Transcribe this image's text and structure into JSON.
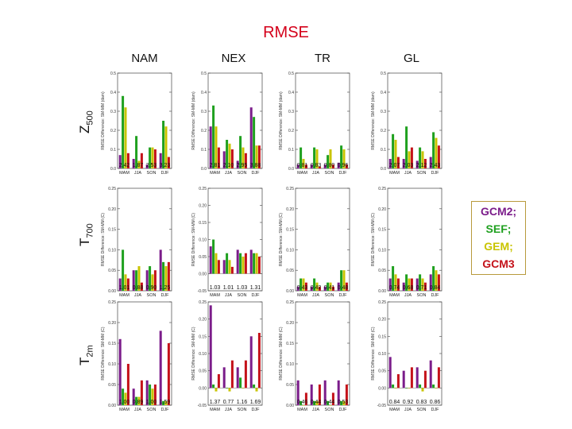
{
  "title": "RMSE",
  "columns": [
    "NAM",
    "NEX",
    "TR",
    "GL"
  ],
  "rows": [
    {
      "var": "Z",
      "sub": "500"
    },
    {
      "var": "T",
      "sub": "700"
    },
    {
      "var": "T",
      "sub": "2m"
    }
  ],
  "legend": [
    {
      "label": "GCM2;",
      "color": "#7b1c8a"
    },
    {
      "label": "SEF;",
      "color": "#1fa01f"
    },
    {
      "label": "GEM;",
      "color": "#c9c400"
    },
    {
      "label": "GCM3",
      "color": "#c4121a"
    }
  ],
  "chart_data": [
    {
      "id": "z500-nam",
      "type": "bar",
      "ylabel": "RMSE Difference: SM-MM (dam)",
      "ylim": [
        0,
        0.5
      ],
      "yticks": [
        "0.0",
        "0.1",
        "0.2",
        "0.3",
        "0.4",
        "0.5"
      ],
      "categories": [
        "MAM",
        "JJA",
        "SON",
        "DJF"
      ],
      "annotations": [
        "2.42",
        "1.87",
        "2.53",
        "3.23"
      ],
      "series": [
        {
          "name": "GCM2",
          "values": [
            0.07,
            0.05,
            0.02,
            0.08
          ]
        },
        {
          "name": "SEF",
          "values": [
            0.38,
            0.17,
            0.11,
            0.25
          ]
        },
        {
          "name": "GEM",
          "values": [
            0.32,
            0.04,
            0.11,
            0.22
          ]
        },
        {
          "name": "GCM3",
          "values": [
            0.08,
            0.08,
            0.1,
            0.06
          ]
        }
      ]
    },
    {
      "id": "z500-nex",
      "type": "bar",
      "ylabel": "RMSE Difference: SM-MM (dam)",
      "ylim": [
        0,
        0.5
      ],
      "yticks": [
        "0.0",
        "0.1",
        "0.2",
        "0.3",
        "0.4",
        "0.5"
      ],
      "categories": [
        "MAM",
        "JJA",
        "SON",
        "DJF"
      ],
      "annotations": [
        "2.81",
        "2.10",
        "2.95",
        "3.88"
      ],
      "series": [
        {
          "name": "GCM2",
          "values": [
            0.22,
            0.09,
            0.04,
            0.32
          ]
        },
        {
          "name": "SEF",
          "values": [
            0.33,
            0.15,
            0.17,
            0.27
          ]
        },
        {
          "name": "GEM",
          "values": [
            0.22,
            0.13,
            0.11,
            0.12
          ]
        },
        {
          "name": "GCM3",
          "values": [
            0.11,
            0.1,
            0.08,
            0.12
          ]
        }
      ]
    },
    {
      "id": "z500-tr",
      "type": "bar",
      "ylabel": "RMSE Difference: SM-MM (dam)",
      "ylim": [
        0,
        0.5
      ],
      "yticks": [
        "0.0",
        "0.1",
        "0.2",
        "0.3",
        "0.4",
        "0.5"
      ],
      "categories": [
        "MAM",
        "JJA",
        "SON",
        "DJF"
      ],
      "annotations": [
        "0.81",
        "0.83",
        "0.80",
        "0.96"
      ],
      "series": [
        {
          "name": "GCM2",
          "values": [
            0.02,
            0.02,
            0.02,
            0.03
          ]
        },
        {
          "name": "SEF",
          "values": [
            0.11,
            0.11,
            0.07,
            0.12
          ]
        },
        {
          "name": "GEM",
          "values": [
            0.05,
            0.1,
            0.1,
            0.1
          ]
        },
        {
          "name": "GCM3",
          "values": [
            0.02,
            0.01,
            0.02,
            0.02
          ]
        }
      ]
    },
    {
      "id": "z500-gl",
      "type": "bar",
      "ylabel": "RMSE Difference: SM-MM (dam)",
      "ylim": [
        0,
        0.5
      ],
      "yticks": [
        "0.0",
        "0.1",
        "0.2",
        "0.3",
        "0.4",
        "0.5"
      ],
      "categories": [
        "MAM",
        "JJA",
        "SON",
        "DJF"
      ],
      "annotations": [
        "2.07",
        "2.03",
        "2.12",
        "2.43"
      ],
      "series": [
        {
          "name": "GCM2",
          "values": [
            0.05,
            0.05,
            0.04,
            0.06
          ]
        },
        {
          "name": "SEF",
          "values": [
            0.18,
            0.22,
            0.11,
            0.19
          ]
        },
        {
          "name": "GEM",
          "values": [
            0.15,
            0.09,
            0.09,
            0.16
          ]
        },
        {
          "name": "GCM3",
          "values": [
            0.06,
            0.11,
            0.05,
            0.12
          ]
        }
      ]
    },
    {
      "id": "t700-nam",
      "type": "bar",
      "ylabel": "RMSE Difference: SM-MM (C)",
      "ylim": [
        0,
        0.25
      ],
      "yticks": [
        "0.00",
        "0.05",
        "0.10",
        "0.15",
        "0.20",
        "0.25"
      ],
      "categories": [
        "MAM",
        "JJA",
        "SON",
        "DJF"
      ],
      "annotations": [
        "1.01",
        "0.88",
        "0.90",
        "1.25"
      ],
      "series": [
        {
          "name": "GCM2",
          "values": [
            0.03,
            0.05,
            0.05,
            0.1
          ]
        },
        {
          "name": "SEF",
          "values": [
            0.1,
            0.05,
            0.06,
            0.07
          ]
        },
        {
          "name": "GEM",
          "values": [
            0.04,
            0.06,
            0.04,
            0.06
          ]
        },
        {
          "name": "GCM3",
          "values": [
            0.03,
            0.02,
            0.05,
            0.07
          ]
        }
      ]
    },
    {
      "id": "t700-nex",
      "type": "bar",
      "ylabel": "RMSE Difference: SM-MM (C)",
      "ylim": [
        -0.05,
        0.25
      ],
      "yticks": [
        "-0.05",
        "0.00",
        "0.05",
        "0.10",
        "0.15",
        "0.20",
        "0.25"
      ],
      "categories": [
        "MAM",
        "JJA",
        "SON",
        "DJF"
      ],
      "annotations": [
        "1.03",
        "1.01",
        "1.03",
        "1.31"
      ],
      "series": [
        {
          "name": "GCM2",
          "values": [
            0.08,
            0.04,
            0.07,
            0.07
          ]
        },
        {
          "name": "SEF",
          "values": [
            0.1,
            0.06,
            0.06,
            0.06
          ]
        },
        {
          "name": "GEM",
          "values": [
            0.06,
            0.04,
            0.05,
            0.06
          ]
        },
        {
          "name": "GCM3",
          "values": [
            0.04,
            0.02,
            0.06,
            0.05
          ]
        }
      ]
    },
    {
      "id": "t700-tr",
      "type": "bar",
      "ylabel": "RMSE Difference: SM-MM (C)",
      "ylim": [
        0,
        0.25
      ],
      "yticks": [
        "0.00",
        "0.05",
        "0.10",
        "0.15",
        "0.20",
        "0.25"
      ],
      "categories": [
        "MAM",
        "JJA",
        "SON",
        "DJF"
      ],
      "annotations": [
        "0.43",
        "0.42",
        "0.41",
        "0.48"
      ],
      "series": [
        {
          "name": "GCM2",
          "values": [
            0.01,
            0.01,
            0.01,
            0.02
          ]
        },
        {
          "name": "SEF",
          "values": [
            0.03,
            0.03,
            0.02,
            0.05
          ]
        },
        {
          "name": "GEM",
          "values": [
            0.03,
            0.02,
            0.02,
            0.05
          ]
        },
        {
          "name": "GCM3",
          "values": [
            0.02,
            0.01,
            0.01,
            0.02
          ]
        }
      ]
    },
    {
      "id": "t700-gl",
      "type": "bar",
      "ylabel": "RMSE Difference: SM-MM (C)",
      "ylim": [
        0,
        0.25
      ],
      "yticks": [
        "0.00",
        "0.05",
        "0.10",
        "0.15",
        "0.20",
        "0.25"
      ],
      "categories": [
        "MAM",
        "JJA",
        "SON",
        "DJF"
      ],
      "annotations": [
        "0.74",
        "0.68",
        "0.71",
        "0.84"
      ],
      "series": [
        {
          "name": "GCM2",
          "values": [
            0.03,
            0.02,
            0.03,
            0.04
          ]
        },
        {
          "name": "SEF",
          "values": [
            0.06,
            0.04,
            0.04,
            0.06
          ]
        },
        {
          "name": "GEM",
          "values": [
            0.04,
            0.03,
            0.03,
            0.05
          ]
        },
        {
          "name": "GCM3",
          "values": [
            0.03,
            0.03,
            0.02,
            0.04
          ]
        }
      ]
    },
    {
      "id": "t2m-nam",
      "type": "bar",
      "ylabel": "RMSE Difference: SM-MM (C)",
      "ylim": [
        0,
        0.25
      ],
      "yticks": [
        "0.00",
        "0.05",
        "0.10",
        "0.15",
        "0.20",
        "0.25"
      ],
      "categories": [
        "MAM",
        "JJA",
        "SON",
        "DJF"
      ],
      "annotations": [
        "1.00",
        "0.89",
        "1.00",
        "1.59"
      ],
      "series": [
        {
          "name": "GCM2",
          "values": [
            0.16,
            0.04,
            0.06,
            0.18
          ]
        },
        {
          "name": "SEF",
          "values": [
            0.04,
            0.02,
            0.05,
            0.01
          ]
        },
        {
          "name": "GEM",
          "values": [
            0.03,
            0.02,
            0.04,
            0.01
          ]
        },
        {
          "name": "GCM3",
          "values": [
            0.1,
            0.06,
            0.05,
            0.15
          ]
        }
      ]
    },
    {
      "id": "t2m-nex",
      "type": "bar",
      "ylabel": "RMSE Difference: SM-MM (C)",
      "ylim": [
        -0.05,
        0.25
      ],
      "yticks": [
        "-0.05",
        "0.00",
        "0.05",
        "0.10",
        "0.15",
        "0.20",
        "0.25"
      ],
      "categories": [
        "MAM",
        "JJA",
        "SON",
        "DJF"
      ],
      "annotations": [
        "1.37",
        "0.77",
        "1.16",
        "1.69"
      ],
      "series": [
        {
          "name": "GCM2",
          "values": [
            0.24,
            0.06,
            0.06,
            0.15
          ]
        },
        {
          "name": "SEF",
          "values": [
            0.01,
            0.0,
            0.03,
            0.01
          ]
        },
        {
          "name": "GEM",
          "values": [
            -0.01,
            -0.01,
            0.0,
            -0.01
          ]
        },
        {
          "name": "GCM3",
          "values": [
            0.04,
            0.08,
            0.08,
            0.16
          ]
        }
      ]
    },
    {
      "id": "t2m-tr",
      "type": "bar",
      "ylabel": "RMSE Difference: SM-MM (C)",
      "ylim": [
        0,
        0.25
      ],
      "yticks": [
        "0.00",
        "0.05",
        "0.10",
        "0.15",
        "0.20",
        "0.25"
      ],
      "categories": [
        "MAM",
        "JJA",
        "SON",
        "DJF"
      ],
      "annotations": [
        "0.46",
        "0.44",
        "0.44",
        "0.53"
      ],
      "series": [
        {
          "name": "GCM2",
          "values": [
            0.06,
            0.05,
            0.06,
            0.06
          ]
        },
        {
          "name": "SEF",
          "values": [
            0.01,
            0.01,
            0.01,
            0.01
          ]
        },
        {
          "name": "GEM",
          "values": [
            0.0,
            0.01,
            0.0,
            0.01
          ]
        },
        {
          "name": "GCM3",
          "values": [
            0.03,
            0.05,
            0.03,
            0.05
          ]
        }
      ]
    },
    {
      "id": "t2m-gl",
      "type": "bar",
      "ylabel": "RMSE Difference: SM-MM (C)",
      "ylim": [
        -0.05,
        0.25
      ],
      "yticks": [
        "-0.05",
        "0.00",
        "0.05",
        "0.10",
        "0.15",
        "0.20",
        "0.25"
      ],
      "categories": [
        "MAM",
        "JJA",
        "SON",
        "DJF"
      ],
      "annotations": [
        "0.84",
        "0.92",
        "0.83",
        "0.86"
      ],
      "series": [
        {
          "name": "GCM2",
          "values": [
            0.09,
            0.05,
            0.06,
            0.08
          ]
        },
        {
          "name": "SEF",
          "values": [
            0.01,
            0.0,
            0.01,
            0.01
          ]
        },
        {
          "name": "GEM",
          "values": [
            0.0,
            0.0,
            -0.01,
            0.0
          ]
        },
        {
          "name": "GCM3",
          "values": [
            0.04,
            0.06,
            0.05,
            0.06
          ]
        }
      ]
    }
  ]
}
